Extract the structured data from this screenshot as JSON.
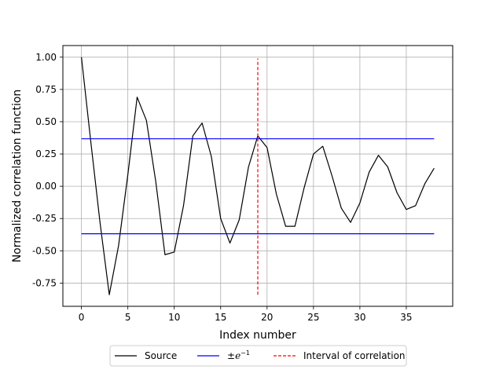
{
  "chart_data": {
    "type": "line",
    "title": "",
    "xlabel": "Index number",
    "ylabel": "Normalized correlation function",
    "xlim": [
      -2,
      40
    ],
    "ylim": [
      -0.93,
      1.09
    ],
    "grid": true,
    "x_ticks": [
      0,
      5,
      10,
      15,
      20,
      25,
      30,
      35
    ],
    "x_tick_labels": [
      "0",
      "5",
      "10",
      "15",
      "20",
      "25",
      "30",
      "35"
    ],
    "y_ticks": [
      1.0,
      0.75,
      0.5,
      0.25,
      0.0,
      -0.25,
      -0.5,
      -0.75
    ],
    "y_tick_labels": [
      "1.00",
      "0.75",
      "0.50",
      "0.25",
      "0.00",
      "-0.25",
      "-0.50",
      "-0.75"
    ],
    "legend_position": "below plot",
    "series": [
      {
        "name": "Source",
        "color": "#000000",
        "style": "solid",
        "x": [
          0,
          1,
          2,
          3,
          4,
          5,
          6,
          7,
          8,
          9,
          10,
          11,
          12,
          13,
          14,
          15,
          16,
          17,
          18,
          19,
          20,
          21,
          22,
          23,
          24,
          25,
          26,
          27,
          28,
          29,
          30,
          31,
          32,
          33,
          34,
          35,
          36,
          37,
          38
        ],
        "y": [
          1.0,
          0.35,
          -0.28,
          -0.84,
          -0.46,
          0.09,
          0.69,
          0.51,
          0.04,
          -0.53,
          -0.51,
          -0.15,
          0.39,
          0.49,
          0.23,
          -0.25,
          -0.44,
          -0.26,
          0.15,
          0.39,
          0.3,
          -0.06,
          -0.31,
          -0.31,
          -0.01,
          0.25,
          0.31,
          0.08,
          -0.17,
          -0.28,
          -0.13,
          0.11,
          0.24,
          0.15,
          -0.05,
          -0.18,
          -0.15,
          0.02,
          0.14
        ]
      },
      {
        "name": "±e^{-1}",
        "color": "#0000ff",
        "style": "solid",
        "segments": [
          {
            "x": [
              0,
              38
            ],
            "y": [
              0.3679,
              0.3679
            ]
          },
          {
            "x": [
              0,
              38
            ],
            "y": [
              -0.3679,
              -0.3679
            ]
          }
        ]
      },
      {
        "name": "Interval of correlation",
        "color": "#ff0000",
        "style": "dashed",
        "x": [
          19,
          19
        ],
        "y": [
          -0.84,
          0.99
        ]
      }
    ],
    "legend": {
      "source_label": "Source",
      "e_label_prefix": "±",
      "e_label_base": "e",
      "e_label_exp": "−1",
      "interval_label": "Interval of correlation"
    }
  }
}
